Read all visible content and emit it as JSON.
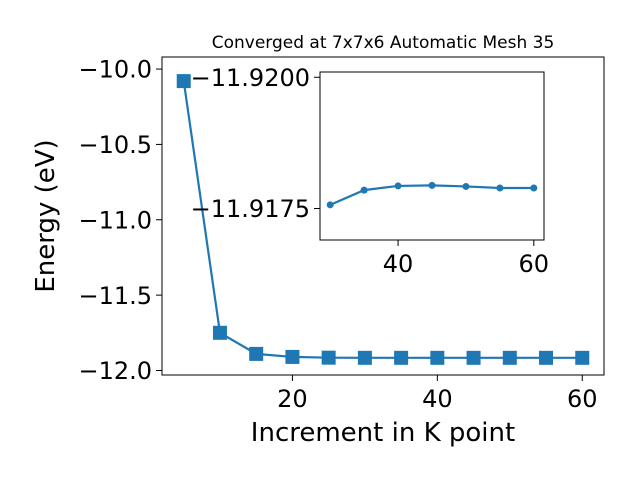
{
  "chart_data": [
    {
      "type": "line",
      "title": "Converged at 7x7x6 Automatic Mesh 35",
      "xlabel": "Increment in K point",
      "ylabel": "Energy (eV)",
      "xlim": [
        2,
        63
      ],
      "ylim": [
        -12.03,
        -9.92
      ],
      "xticks": [
        20,
        40,
        60
      ],
      "xtick_labels": [
        "20",
        "40",
        "60"
      ],
      "yticks": [
        -10.0,
        -10.5,
        -11.0,
        -11.5,
        -12.0
      ],
      "ytick_labels": [
        "−10.0",
        "−10.5",
        "−11.0",
        "−11.5",
        "−12.0"
      ],
      "grid": false,
      "marker": "square",
      "color": "#1f77b4",
      "series": [
        {
          "x": [
            5,
            10,
            15,
            20,
            25,
            30,
            35,
            40,
            45,
            50,
            55,
            60
          ],
          "y": [
            -10.08,
            -11.75,
            -11.89,
            -11.91,
            -11.915,
            -11.916,
            -11.916,
            -11.916,
            -11.916,
            -11.916,
            -11.916,
            -11.916
          ]
        }
      ]
    },
    {
      "type": "line",
      "inset": true,
      "xlim": [
        28.5,
        61.5
      ],
      "ylim": [
        -11.9169,
        -11.9201
      ],
      "xticks": [
        40,
        60
      ],
      "xtick_labels": [
        "40",
        "60"
      ],
      "yticks": [
        -11.9175,
        -11.92
      ],
      "ytick_labels": [
        "−11.9175",
        "−11.9200"
      ],
      "grid": false,
      "marker": "circle",
      "color": "#1f77b4",
      "series": [
        {
          "x": [
            30,
            35,
            40,
            45,
            50,
            55,
            60
          ],
          "y": [
            -11.91757,
            -11.91785,
            -11.91793,
            -11.91794,
            -11.91792,
            -11.91789,
            -11.91789
          ]
        }
      ]
    }
  ]
}
